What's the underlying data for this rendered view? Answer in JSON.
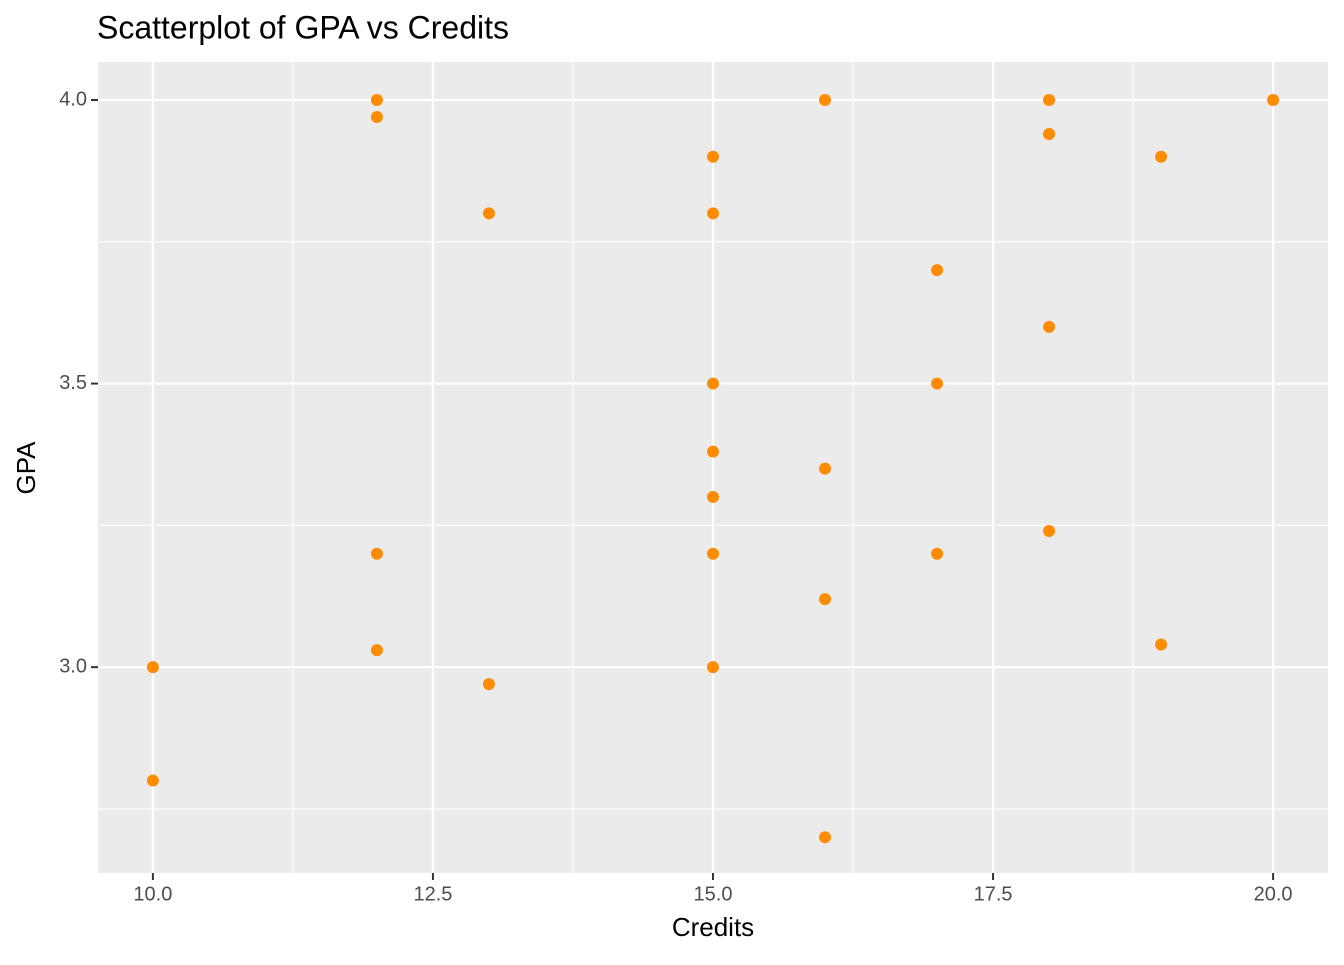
{
  "chart_data": {
    "type": "scatter",
    "title": "Scatterplot of GPA vs Credits",
    "x_label": "Credits",
    "y_label": "GPA",
    "x": [
      10,
      10,
      12,
      12,
      12,
      12,
      13,
      13,
      15,
      15,
      15,
      15,
      15,
      15,
      15,
      16,
      16,
      16,
      16,
      17,
      17,
      17,
      18,
      18,
      18,
      18,
      19,
      19,
      20
    ],
    "values": [
      3.0,
      2.8,
      4.0,
      3.97,
      3.2,
      3.03,
      3.8,
      2.97,
      3.9,
      3.8,
      3.5,
      3.38,
      3.3,
      3.2,
      3.0,
      4.0,
      3.35,
      3.12,
      2.7,
      3.7,
      3.5,
      3.2,
      4.0,
      3.94,
      3.6,
      3.24,
      3.9,
      3.04,
      4.0
    ],
    "color": "#ff8c00",
    "xlim": [
      9.51,
      20.49
    ],
    "ylim": [
      2.637,
      4.067
    ],
    "xticks": [
      {
        "value": 10,
        "label": "10.0"
      },
      {
        "value": 12.5,
        "label": "12.5"
      },
      {
        "value": 15,
        "label": "15.0"
      },
      {
        "value": 17.5,
        "label": "17.5"
      },
      {
        "value": 20,
        "label": "20.0"
      }
    ],
    "yticks": [
      {
        "value": 3,
        "label": "3.0"
      },
      {
        "value": 3.5,
        "label": "3.5"
      },
      {
        "value": 4,
        "label": "4.0"
      }
    ],
    "x_minor_grid": [
      11.25,
      13.75,
      16.25,
      18.75
    ],
    "y_minor_grid": [
      2.75,
      3.25,
      3.75
    ],
    "grid": true
  }
}
